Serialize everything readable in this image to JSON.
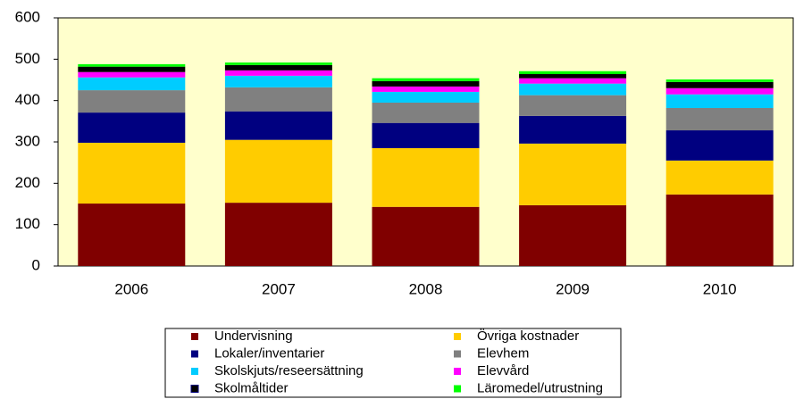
{
  "chart_data": {
    "type": "stacked_bar",
    "categories": [
      "2006",
      "2007",
      "2008",
      "2009",
      "2010"
    ],
    "series": [
      {
        "name": "Undervisning",
        "color": "#800000",
        "values": [
          151,
          153,
          143,
          147,
          173
        ]
      },
      {
        "name": "Övriga kostnader",
        "color": "#ffcc00",
        "values": [
          147,
          152,
          142,
          149,
          82
        ]
      },
      {
        "name": "Lokaler/inventarier",
        "color": "#000080",
        "values": [
          73,
          69,
          61,
          67,
          73
        ]
      },
      {
        "name": "Elevhem",
        "color": "#808080",
        "values": [
          54,
          58,
          49,
          50,
          54
        ]
      },
      {
        "name": "Skolskjuts/reseersättning",
        "color": "#00ccff",
        "values": [
          31,
          28,
          26,
          28,
          33
        ]
      },
      {
        "name": "Elevvård",
        "color": "#ff00ff",
        "values": [
          13,
          13,
          13,
          13,
          15
        ]
      },
      {
        "name": "Skolmåltider",
        "color": "#000000",
        "values": [
          13,
          13,
          13,
          10,
          15
        ]
      },
      {
        "name": "Läromedel/utrustning",
        "color": "#00ff00",
        "values": [
          6,
          6,
          7,
          7,
          6
        ]
      }
    ],
    "ylim": [
      0,
      600
    ],
    "yticks": [
      0,
      100,
      200,
      300,
      400,
      500,
      600
    ],
    "grid": false,
    "legend": "bottom"
  }
}
